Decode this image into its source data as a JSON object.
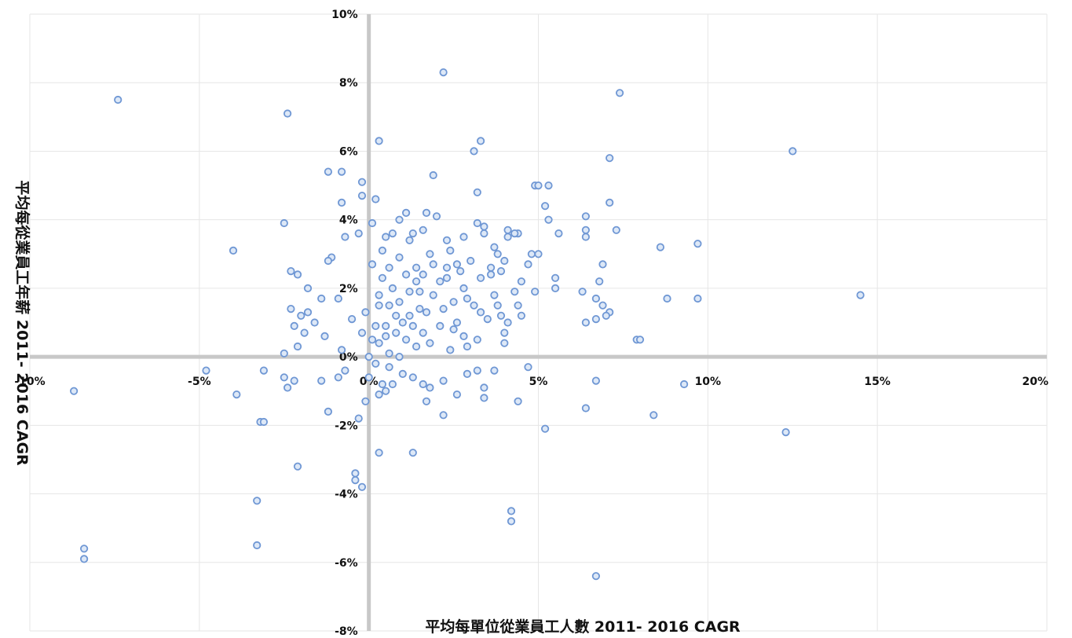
{
  "chart_data": {
    "type": "scatter",
    "xlabel": "平均每單位從業員工人數 2011- 2016 CAGR",
    "ylabel": "平均每從業員工年薪 2011- 2016 CAGR",
    "xlim": [
      -10,
      20
    ],
    "ylim": [
      -8,
      10
    ],
    "x_ticks": [
      -10,
      -5,
      0,
      5,
      10,
      15,
      20
    ],
    "y_ticks": [
      -8,
      -6,
      -4,
      -2,
      0,
      2,
      4,
      6,
      8,
      10
    ],
    "x_tick_labels": [
      "-10%",
      "-5%",
      "0%",
      "5%",
      "10%",
      "15%",
      "20%"
    ],
    "y_tick_labels": [
      "-8%",
      "-6%",
      "-4%",
      "-2%",
      "0%",
      "2%",
      "4%",
      "6%",
      "8%",
      "10%"
    ],
    "grid": true,
    "colors": {
      "marker_stroke": "#6f97d4",
      "marker_fill": "#dde8f7",
      "grid": "#e6e6e6",
      "axis": "#c8c8c8"
    },
    "points": [
      [
        -7.4,
        7.5
      ],
      [
        -2.4,
        7.1
      ],
      [
        -8.4,
        -5.6
      ],
      [
        -8.4,
        -5.9
      ],
      [
        -8.7,
        -1.0
      ],
      [
        -3.3,
        -4.2
      ],
      [
        -3.3,
        -5.5
      ],
      [
        -2.1,
        -3.2
      ],
      [
        -3.9,
        -1.1
      ],
      [
        -3.2,
        -1.9
      ],
      [
        -3.1,
        -1.9
      ],
      [
        -3.1,
        -0.4
      ],
      [
        -4.8,
        -0.4
      ],
      [
        -4.0,
        3.1
      ],
      [
        -2.5,
        3.9
      ],
      [
        -2.3,
        2.5
      ],
      [
        -1.2,
        5.4
      ],
      [
        -0.8,
        5.4
      ],
      [
        -0.2,
        5.1
      ],
      [
        0.3,
        6.3
      ],
      [
        -0.8,
        4.5
      ],
      [
        -0.2,
        4.7
      ],
      [
        0.2,
        4.6
      ],
      [
        -0.3,
        3.6
      ],
      [
        0.1,
        3.9
      ],
      [
        -0.7,
        3.5
      ],
      [
        -1.1,
        2.9
      ],
      [
        -1.2,
        2.8
      ],
      [
        -2.1,
        2.4
      ],
      [
        -1.8,
        2.0
      ],
      [
        -1.4,
        1.7
      ],
      [
        -0.9,
        1.7
      ],
      [
        -2.3,
        1.4
      ],
      [
        -1.8,
        1.3
      ],
      [
        -2.0,
        1.2
      ],
      [
        -1.6,
        1.0
      ],
      [
        -2.2,
        0.9
      ],
      [
        -1.9,
        0.7
      ],
      [
        -1.3,
        0.6
      ],
      [
        -0.5,
        1.1
      ],
      [
        -0.1,
        1.3
      ],
      [
        0.3,
        1.5
      ],
      [
        0.2,
        0.9
      ],
      [
        -0.2,
        0.7
      ],
      [
        0.1,
        0.5
      ],
      [
        -2.5,
        0.1
      ],
      [
        -2.1,
        0.3
      ],
      [
        -0.8,
        0.2
      ],
      [
        -0.7,
        -0.4
      ],
      [
        -0.9,
        -0.6
      ],
      [
        -1.4,
        -0.7
      ],
      [
        -2.2,
        -0.7
      ],
      [
        -2.5,
        -0.6
      ],
      [
        -2.4,
        -0.9
      ],
      [
        -0.3,
        -1.8
      ],
      [
        -0.1,
        -1.3
      ],
      [
        -1.2,
        -1.6
      ],
      [
        -0.4,
        -3.4
      ],
      [
        -0.4,
        -3.6
      ],
      [
        -0.2,
        -3.8
      ],
      [
        0.3,
        -2.8
      ],
      [
        1.3,
        -2.8
      ],
      [
        0.5,
        -1.0
      ],
      [
        0.7,
        -0.8
      ],
      [
        1.0,
        -0.5
      ],
      [
        1.3,
        -0.6
      ],
      [
        1.6,
        -0.8
      ],
      [
        1.8,
        -0.9
      ],
      [
        2.2,
        -0.7
      ],
      [
        2.2,
        -1.7
      ],
      [
        2.6,
        -1.1
      ],
      [
        2.9,
        -0.5
      ],
      [
        3.2,
        -0.4
      ],
      [
        3.4,
        -0.9
      ],
      [
        3.4,
        -1.2
      ],
      [
        3.7,
        -0.4
      ],
      [
        4.4,
        -1.3
      ],
      [
        5.2,
        -2.1
      ],
      [
        4.7,
        -0.3
      ],
      [
        6.4,
        -1.5
      ],
      [
        4.2,
        -4.5
      ],
      [
        4.2,
        -4.8
      ],
      [
        6.7,
        -6.4
      ],
      [
        6.7,
        -0.7
      ],
      [
        8.4,
        -1.7
      ],
      [
        9.3,
        -0.8
      ],
      [
        12.3,
        -2.2
      ],
      [
        12.5,
        6.0
      ],
      [
        14.5,
        1.8
      ],
      [
        9.7,
        1.7
      ],
      [
        9.7,
        3.3
      ],
      [
        8.8,
        1.7
      ],
      [
        8.6,
        3.2
      ],
      [
        7.9,
        0.5
      ],
      [
        8.0,
        0.5
      ],
      [
        7.4,
        7.7
      ],
      [
        7.1,
        5.8
      ],
      [
        7.1,
        4.5
      ],
      [
        7.3,
        3.7
      ],
      [
        6.4,
        4.1
      ],
      [
        6.4,
        3.7
      ],
      [
        6.4,
        3.5
      ],
      [
        6.9,
        2.7
      ],
      [
        6.8,
        2.2
      ],
      [
        6.7,
        1.7
      ],
      [
        6.9,
        1.5
      ],
      [
        7.1,
        1.3
      ],
      [
        7.0,
        1.2
      ],
      [
        6.3,
        1.9
      ],
      [
        6.7,
        1.1
      ],
      [
        6.4,
        1.0
      ],
      [
        5.3,
        5.0
      ],
      [
        4.9,
        5.0
      ],
      [
        5.0,
        5.0
      ],
      [
        5.2,
        4.4
      ],
      [
        5.3,
        4.0
      ],
      [
        5.6,
        3.6
      ],
      [
        5.5,
        2.3
      ],
      [
        5.5,
        2.0
      ],
      [
        4.9,
        1.9
      ],
      [
        5.0,
        3.0
      ],
      [
        4.7,
        2.7
      ],
      [
        4.5,
        2.2
      ],
      [
        4.4,
        3.6
      ],
      [
        4.4,
        1.5
      ],
      [
        4.5,
        1.2
      ],
      [
        4.8,
        3.0
      ],
      [
        2.2,
        8.3
      ],
      [
        3.1,
        6.0
      ],
      [
        3.3,
        6.3
      ],
      [
        3.2,
        4.8
      ],
      [
        3.4,
        3.8
      ],
      [
        3.4,
        3.6
      ],
      [
        3.7,
        3.2
      ],
      [
        3.8,
        3.0
      ],
      [
        4.1,
        3.7
      ],
      [
        4.3,
        3.6
      ],
      [
        4.1,
        3.5
      ],
      [
        4.0,
        2.8
      ],
      [
        3.6,
        2.6
      ],
      [
        3.6,
        2.4
      ],
      [
        3.3,
        2.3
      ],
      [
        3.7,
        1.8
      ],
      [
        3.8,
        1.5
      ],
      [
        3.9,
        1.2
      ],
      [
        4.1,
        1.0
      ],
      [
        4.0,
        0.7
      ],
      [
        4.0,
        0.4
      ],
      [
        1.9,
        5.3
      ],
      [
        1.7,
        4.2
      ],
      [
        2.0,
        4.1
      ],
      [
        2.3,
        3.4
      ],
      [
        2.8,
        3.5
      ],
      [
        3.2,
        3.9
      ],
      [
        2.4,
        3.1
      ],
      [
        2.3,
        2.6
      ],
      [
        2.7,
        2.5
      ],
      [
        2.3,
        2.3
      ],
      [
        1.9,
        2.7
      ],
      [
        2.1,
        2.2
      ],
      [
        1.6,
        2.4
      ],
      [
        2.8,
        2.0
      ],
      [
        2.9,
        1.7
      ],
      [
        3.1,
        1.5
      ],
      [
        3.3,
        1.3
      ],
      [
        2.5,
        1.6
      ],
      [
        2.2,
        1.4
      ],
      [
        2.6,
        1.0
      ],
      [
        2.5,
        0.8
      ],
      [
        2.8,
        0.6
      ],
      [
        3.2,
        0.5
      ],
      [
        2.9,
        0.3
      ],
      [
        2.4,
        0.2
      ],
      [
        1.8,
        0.4
      ],
      [
        1.6,
        0.7
      ],
      [
        1.3,
        0.9
      ],
      [
        1.0,
        1.0
      ],
      [
        0.8,
        1.2
      ],
      [
        1.1,
        4.2
      ],
      [
        0.9,
        4.0
      ],
      [
        1.3,
        3.6
      ],
      [
        1.6,
        3.7
      ],
      [
        1.2,
        3.4
      ],
      [
        0.7,
        3.6
      ],
      [
        0.5,
        3.5
      ],
      [
        0.9,
        2.9
      ],
      [
        0.6,
        2.6
      ],
      [
        1.1,
        2.4
      ],
      [
        1.4,
        2.2
      ],
      [
        1.2,
        1.9
      ],
      [
        0.7,
        2.0
      ],
      [
        0.4,
        2.3
      ],
      [
        0.3,
        1.8
      ],
      [
        0.6,
        1.5
      ],
      [
        0.9,
        1.6
      ],
      [
        1.5,
        1.4
      ],
      [
        1.7,
        1.3
      ],
      [
        1.2,
        1.2
      ],
      [
        0.5,
        0.9
      ],
      [
        0.8,
        0.7
      ],
      [
        1.1,
        0.5
      ],
      [
        1.4,
        0.3
      ],
      [
        0.3,
        0.4
      ],
      [
        0.6,
        0.1
      ],
      [
        0.9,
        0.0
      ],
      [
        0.0,
        0.0
      ],
      [
        0.2,
        -0.2
      ],
      [
        0.6,
        -0.3
      ],
      [
        0.3,
        -1.1
      ],
      [
        0.4,
        -0.8
      ],
      [
        0.0,
        -0.6
      ],
      [
        1.7,
        -1.3
      ],
      [
        2.1,
        0.9
      ],
      [
        1.5,
        1.9
      ],
      [
        3.5,
        1.1
      ],
      [
        3.0,
        2.8
      ],
      [
        2.6,
        2.7
      ],
      [
        1.8,
        3.0
      ],
      [
        0.1,
        2.7
      ],
      [
        0.4,
        3.1
      ],
      [
        1.4,
        2.6
      ],
      [
        3.9,
        2.5
      ],
      [
        4.3,
        1.9
      ],
      [
        1.9,
        1.8
      ],
      [
        0.5,
        0.6
      ]
    ]
  }
}
